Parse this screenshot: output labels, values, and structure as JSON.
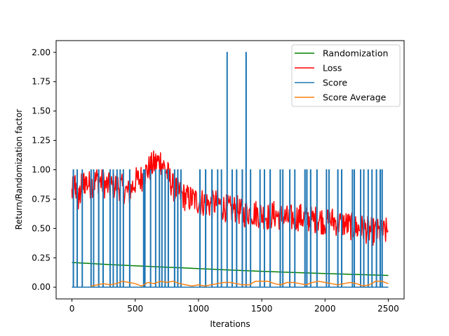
{
  "chart_data": {
    "type": "line",
    "title": "",
    "xlabel": "Iterations",
    "ylabel": "Return/Randomization factor",
    "xlim": [
      -125,
      2625
    ],
    "ylim": [
      -0.1,
      2.1
    ],
    "xticks": [
      0,
      500,
      1000,
      1500,
      2000,
      2500
    ],
    "xtick_labels": [
      "0",
      "500",
      "1000",
      "1500",
      "2000",
      "2500"
    ],
    "yticks": [
      0.0,
      0.25,
      0.5,
      0.75,
      1.0,
      1.25,
      1.5,
      1.75,
      2.0
    ],
    "ytick_labels": [
      "0.00",
      "0.25",
      "0.50",
      "0.75",
      "1.00",
      "1.25",
      "1.50",
      "1.75",
      "2.00"
    ],
    "grid": false,
    "legend_position": "top-right",
    "series": [
      {
        "name": "Randomization",
        "color": "#008000",
        "x": [
          0,
          250,
          500,
          750,
          1000,
          1250,
          1500,
          1750,
          2000,
          2250,
          2500
        ],
        "y": [
          0.21,
          0.195,
          0.182,
          0.17,
          0.158,
          0.146,
          0.135,
          0.125,
          0.116,
          0.108,
          0.1
        ]
      },
      {
        "name": "Loss",
        "color": "#ff0000",
        "x": [
          0,
          25,
          50,
          75,
          100,
          150,
          200,
          250,
          300,
          350,
          400,
          450,
          500,
          550,
          600,
          650,
          700,
          750,
          800,
          850,
          900,
          950,
          1000,
          1050,
          1100,
          1150,
          1200,
          1250,
          1300,
          1350,
          1400,
          1450,
          1500,
          1550,
          1600,
          1650,
          1700,
          1750,
          1800,
          1850,
          1900,
          1950,
          2000,
          2050,
          2100,
          2150,
          2200,
          2250,
          2300,
          2350,
          2400,
          2450,
          2500
        ],
        "y": [
          0.8,
          0.88,
          0.72,
          0.85,
          0.9,
          0.87,
          0.92,
          0.88,
          0.85,
          0.87,
          0.84,
          0.8,
          0.9,
          0.93,
          1.0,
          1.05,
          1.08,
          0.98,
          0.85,
          0.8,
          0.76,
          0.75,
          0.73,
          0.72,
          0.7,
          0.72,
          0.68,
          0.66,
          0.67,
          0.62,
          0.64,
          0.63,
          0.62,
          0.6,
          0.62,
          0.6,
          0.58,
          0.59,
          0.6,
          0.58,
          0.57,
          0.58,
          0.56,
          0.57,
          0.55,
          0.54,
          0.52,
          0.5,
          0.5,
          0.48,
          0.47,
          0.46,
          0.48
        ]
      },
      {
        "name": "Score",
        "color": "#1f77b4",
        "spikes": [
          {
            "x": 10,
            "y": 1
          },
          {
            "x": 40,
            "y": 1
          },
          {
            "x": 80,
            "y": 1
          },
          {
            "x": 150,
            "y": 1
          },
          {
            "x": 170,
            "y": 1
          },
          {
            "x": 210,
            "y": 1
          },
          {
            "x": 245,
            "y": 1
          },
          {
            "x": 300,
            "y": 1
          },
          {
            "x": 325,
            "y": 1
          },
          {
            "x": 355,
            "y": 1
          },
          {
            "x": 380,
            "y": 1
          },
          {
            "x": 405,
            "y": 1
          },
          {
            "x": 455,
            "y": 1
          },
          {
            "x": 565,
            "y": 1
          },
          {
            "x": 575,
            "y": 1
          },
          {
            "x": 620,
            "y": 1
          },
          {
            "x": 660,
            "y": 1
          },
          {
            "x": 690,
            "y": 1
          },
          {
            "x": 710,
            "y": 1
          },
          {
            "x": 735,
            "y": 1
          },
          {
            "x": 760,
            "y": 1
          },
          {
            "x": 810,
            "y": 1
          },
          {
            "x": 835,
            "y": 1
          },
          {
            "x": 860,
            "y": 1
          },
          {
            "x": 1010,
            "y": 1
          },
          {
            "x": 1055,
            "y": 1
          },
          {
            "x": 1105,
            "y": 1
          },
          {
            "x": 1150,
            "y": 1
          },
          {
            "x": 1180,
            "y": 1
          },
          {
            "x": 1225,
            "y": 2
          },
          {
            "x": 1265,
            "y": 1
          },
          {
            "x": 1300,
            "y": 1
          },
          {
            "x": 1345,
            "y": 1
          },
          {
            "x": 1375,
            "y": 2
          },
          {
            "x": 1410,
            "y": 1
          },
          {
            "x": 1485,
            "y": 1
          },
          {
            "x": 1520,
            "y": 1
          },
          {
            "x": 1565,
            "y": 1
          },
          {
            "x": 1645,
            "y": 1
          },
          {
            "x": 1665,
            "y": 1
          },
          {
            "x": 1720,
            "y": 1
          },
          {
            "x": 1760,
            "y": 1
          },
          {
            "x": 1840,
            "y": 1
          },
          {
            "x": 1855,
            "y": 1
          },
          {
            "x": 1885,
            "y": 1
          },
          {
            "x": 1935,
            "y": 1
          },
          {
            "x": 2010,
            "y": 1
          },
          {
            "x": 2030,
            "y": 1
          },
          {
            "x": 2100,
            "y": 1
          },
          {
            "x": 2130,
            "y": 1
          },
          {
            "x": 2215,
            "y": 1
          },
          {
            "x": 2230,
            "y": 1
          },
          {
            "x": 2280,
            "y": 1
          },
          {
            "x": 2305,
            "y": 1
          },
          {
            "x": 2340,
            "y": 1
          },
          {
            "x": 2370,
            "y": 1
          },
          {
            "x": 2405,
            "y": 1
          },
          {
            "x": 2435,
            "y": 1
          },
          {
            "x": 2450,
            "y": 1
          }
        ],
        "x_range": [
          0,
          2500
        ],
        "baseline": 0
      },
      {
        "name": "Score Average",
        "color": "#ff7f0e",
        "x": [
          150,
          200,
          250,
          300,
          350,
          400,
          450,
          500,
          550,
          600,
          650,
          700,
          750,
          800,
          850,
          900,
          950,
          1000,
          1050,
          1100,
          1150,
          1200,
          1250,
          1300,
          1350,
          1400,
          1450,
          1500,
          1550,
          1600,
          1650,
          1700,
          1750,
          1800,
          1850,
          1900,
          1950,
          2000,
          2050,
          2100,
          2150,
          2200,
          2250,
          2300,
          2350,
          2400,
          2450,
          2500
        ],
        "y": [
          0.01,
          0.02,
          0.03,
          0.02,
          0.03,
          0.05,
          0.04,
          0.03,
          0.01,
          0.04,
          0.03,
          0.05,
          0.04,
          0.05,
          0.03,
          0.02,
          0.01,
          0.02,
          0.01,
          0.02,
          0.03,
          0.04,
          0.04,
          0.03,
          0.02,
          0.02,
          0.05,
          0.05,
          0.05,
          0.03,
          0.02,
          0.04,
          0.04,
          0.03,
          0.02,
          0.04,
          0.05,
          0.04,
          0.03,
          0.02,
          0.03,
          0.04,
          0.03,
          0.01,
          0.02,
          0.05,
          0.05,
          0.03
        ]
      }
    ]
  }
}
